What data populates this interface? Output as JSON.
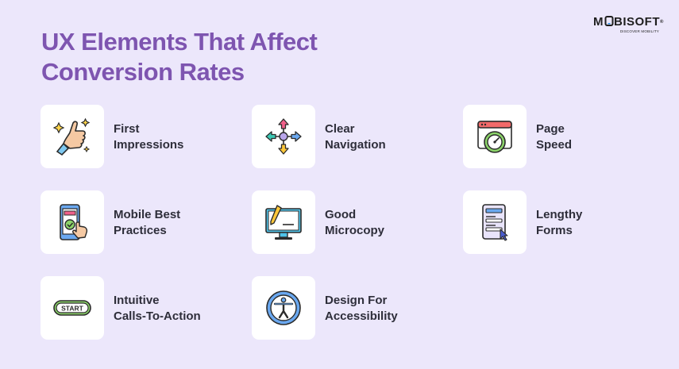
{
  "title": {
    "line1": "UX Elements That Affect",
    "line2": "Conversion Rates"
  },
  "brand": {
    "name_pre": "M",
    "name_post": "BISOFT",
    "tagline": "DISCOVER MOBILITY",
    "colors": {
      "title": "#7e55b0",
      "background": "#ece7fb",
      "card": "#ffffff"
    }
  },
  "items": [
    {
      "line1": "First",
      "line2": "Impressions",
      "icon": "thumbs-up-icon"
    },
    {
      "line1": "Clear",
      "line2": "Navigation",
      "icon": "arrows-navigation-icon"
    },
    {
      "line1": "Page",
      "line2": "Speed",
      "icon": "speedometer-icon"
    },
    {
      "line1": "Mobile Best",
      "line2": "Practices",
      "icon": "mobile-tap-icon"
    },
    {
      "line1": "Good",
      "line2": "Microcopy",
      "icon": "monitor-pencil-icon"
    },
    {
      "line1": "Lengthy",
      "line2": "Forms",
      "icon": "form-cursor-icon"
    },
    {
      "line1": "Intuitive",
      "line2": "Calls-To-Action",
      "icon": "start-button-icon"
    },
    {
      "line1": "Design For",
      "line2": "Accessibility",
      "icon": "accessibility-icon"
    }
  ]
}
